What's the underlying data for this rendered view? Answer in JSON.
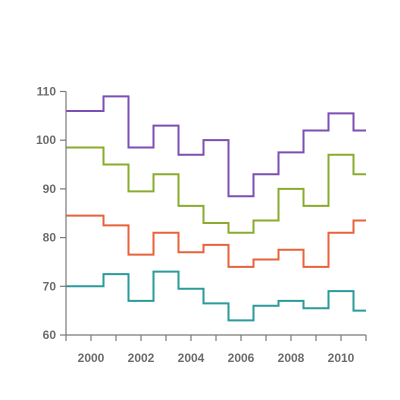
{
  "chart_data": {
    "type": "line",
    "step": "mid",
    "title": "",
    "xlabel": "",
    "ylabel": "",
    "x": [
      1999,
      2000,
      2001,
      2002,
      2003,
      2004,
      2005,
      2006,
      2007,
      2008,
      2009,
      2010,
      2011
    ],
    "xlim": [
      1999,
      2011
    ],
    "ylim": [
      60,
      114
    ],
    "x_ticks": [
      2000,
      2002,
      2004,
      2006,
      2008,
      2010
    ],
    "x_tick_labels": [
      "2000",
      "2002",
      "2004",
      "2006",
      "2008",
      "2010"
    ],
    "y_ticks": [
      60,
      70,
      80,
      90,
      100,
      110
    ],
    "y_tick_labels": [
      "60",
      "70",
      "80",
      "90",
      "100",
      "110"
    ],
    "grid": false,
    "legend": "none",
    "series": [
      {
        "color": "#7b4fb3",
        "values": [
          106,
          106,
          109,
          98.5,
          103,
          97,
          100,
          88.5,
          93,
          97.5,
          102,
          105.5,
          102
        ]
      },
      {
        "color": "#8aac2e",
        "values": [
          98.5,
          98.5,
          95,
          89.5,
          93,
          86.5,
          83,
          81,
          83.5,
          90,
          86.5,
          97,
          93
        ]
      },
      {
        "color": "#e8623c",
        "values": [
          84.5,
          84.5,
          82.5,
          76.5,
          81,
          77,
          78.5,
          74,
          75.5,
          77.5,
          74,
          81,
          83.5
        ]
      },
      {
        "color": "#2a9a9a",
        "values": [
          70,
          70,
          72.5,
          67,
          73,
          69.5,
          66.5,
          63,
          66,
          67,
          65.5,
          69,
          65
        ]
      }
    ]
  }
}
